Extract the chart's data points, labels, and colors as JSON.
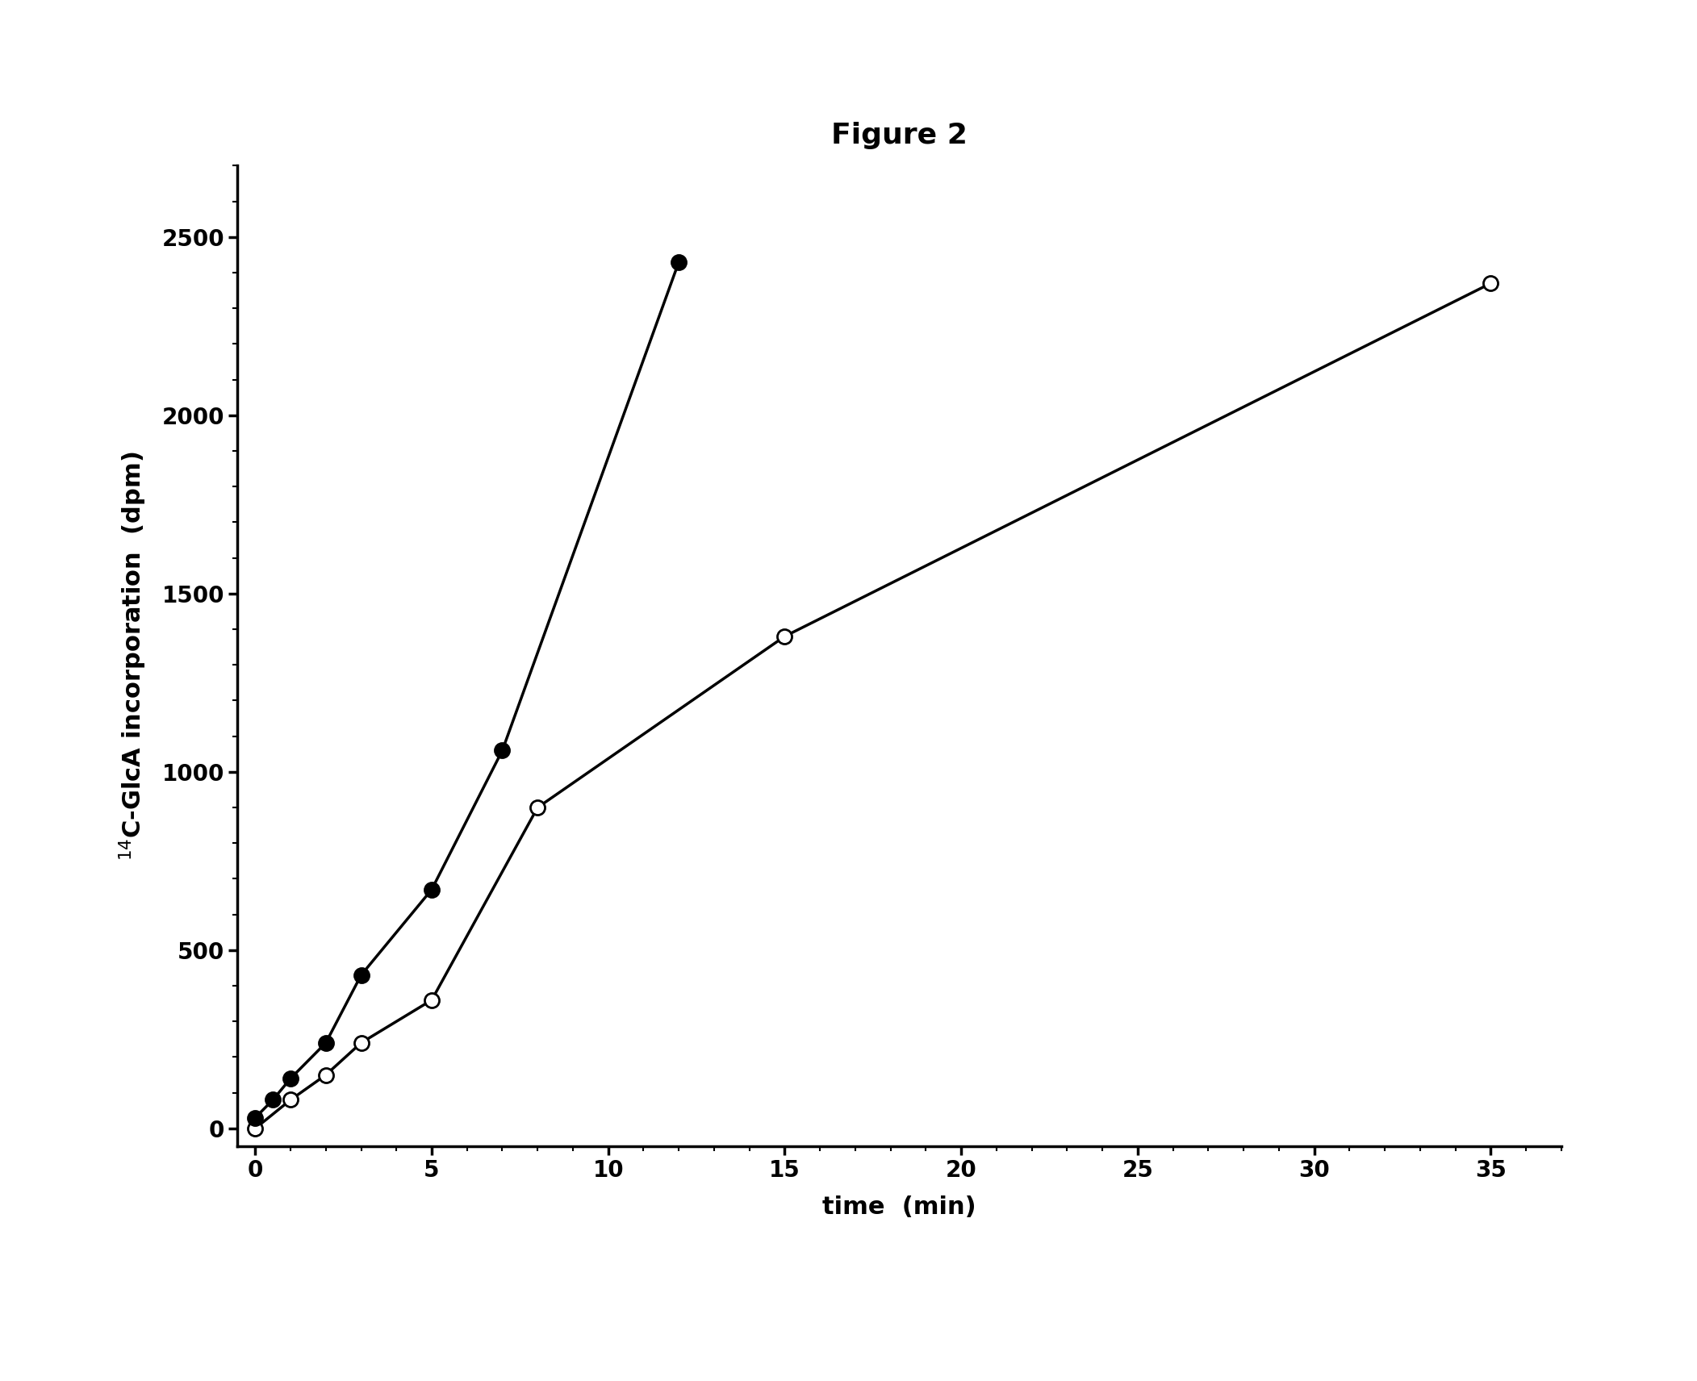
{
  "title": "Figure 2",
  "xlabel": "time  (min)",
  "ylabel": "$^{14}$C-GlcA incorporation  (dpm)",
  "xlim": [
    -0.5,
    37
  ],
  "ylim": [
    -50,
    2700
  ],
  "xticks": [
    0,
    5,
    10,
    15,
    20,
    25,
    30,
    35
  ],
  "yticks": [
    0,
    500,
    1000,
    1500,
    2000,
    2500
  ],
  "filled_series": {
    "x": [
      0,
      0.5,
      1,
      2,
      3,
      5,
      7,
      12
    ],
    "y": [
      30,
      80,
      140,
      240,
      430,
      670,
      1060,
      2430
    ]
  },
  "open_series": {
    "x": [
      0,
      1,
      2,
      3,
      5,
      8,
      15,
      35
    ],
    "y": [
      0,
      80,
      150,
      240,
      360,
      900,
      1380,
      2370
    ]
  },
  "line_color": "#000000",
  "filled_marker_face": "#000000",
  "filled_marker_edge": "#000000",
  "open_marker_face": "#ffffff",
  "open_marker_edge": "#000000",
  "marker_size": 13,
  "line_width": 2.5,
  "background_color": "#ffffff",
  "title_fontsize": 26,
  "title_fontweight": "bold",
  "label_fontsize": 22,
  "tick_fontsize": 20
}
